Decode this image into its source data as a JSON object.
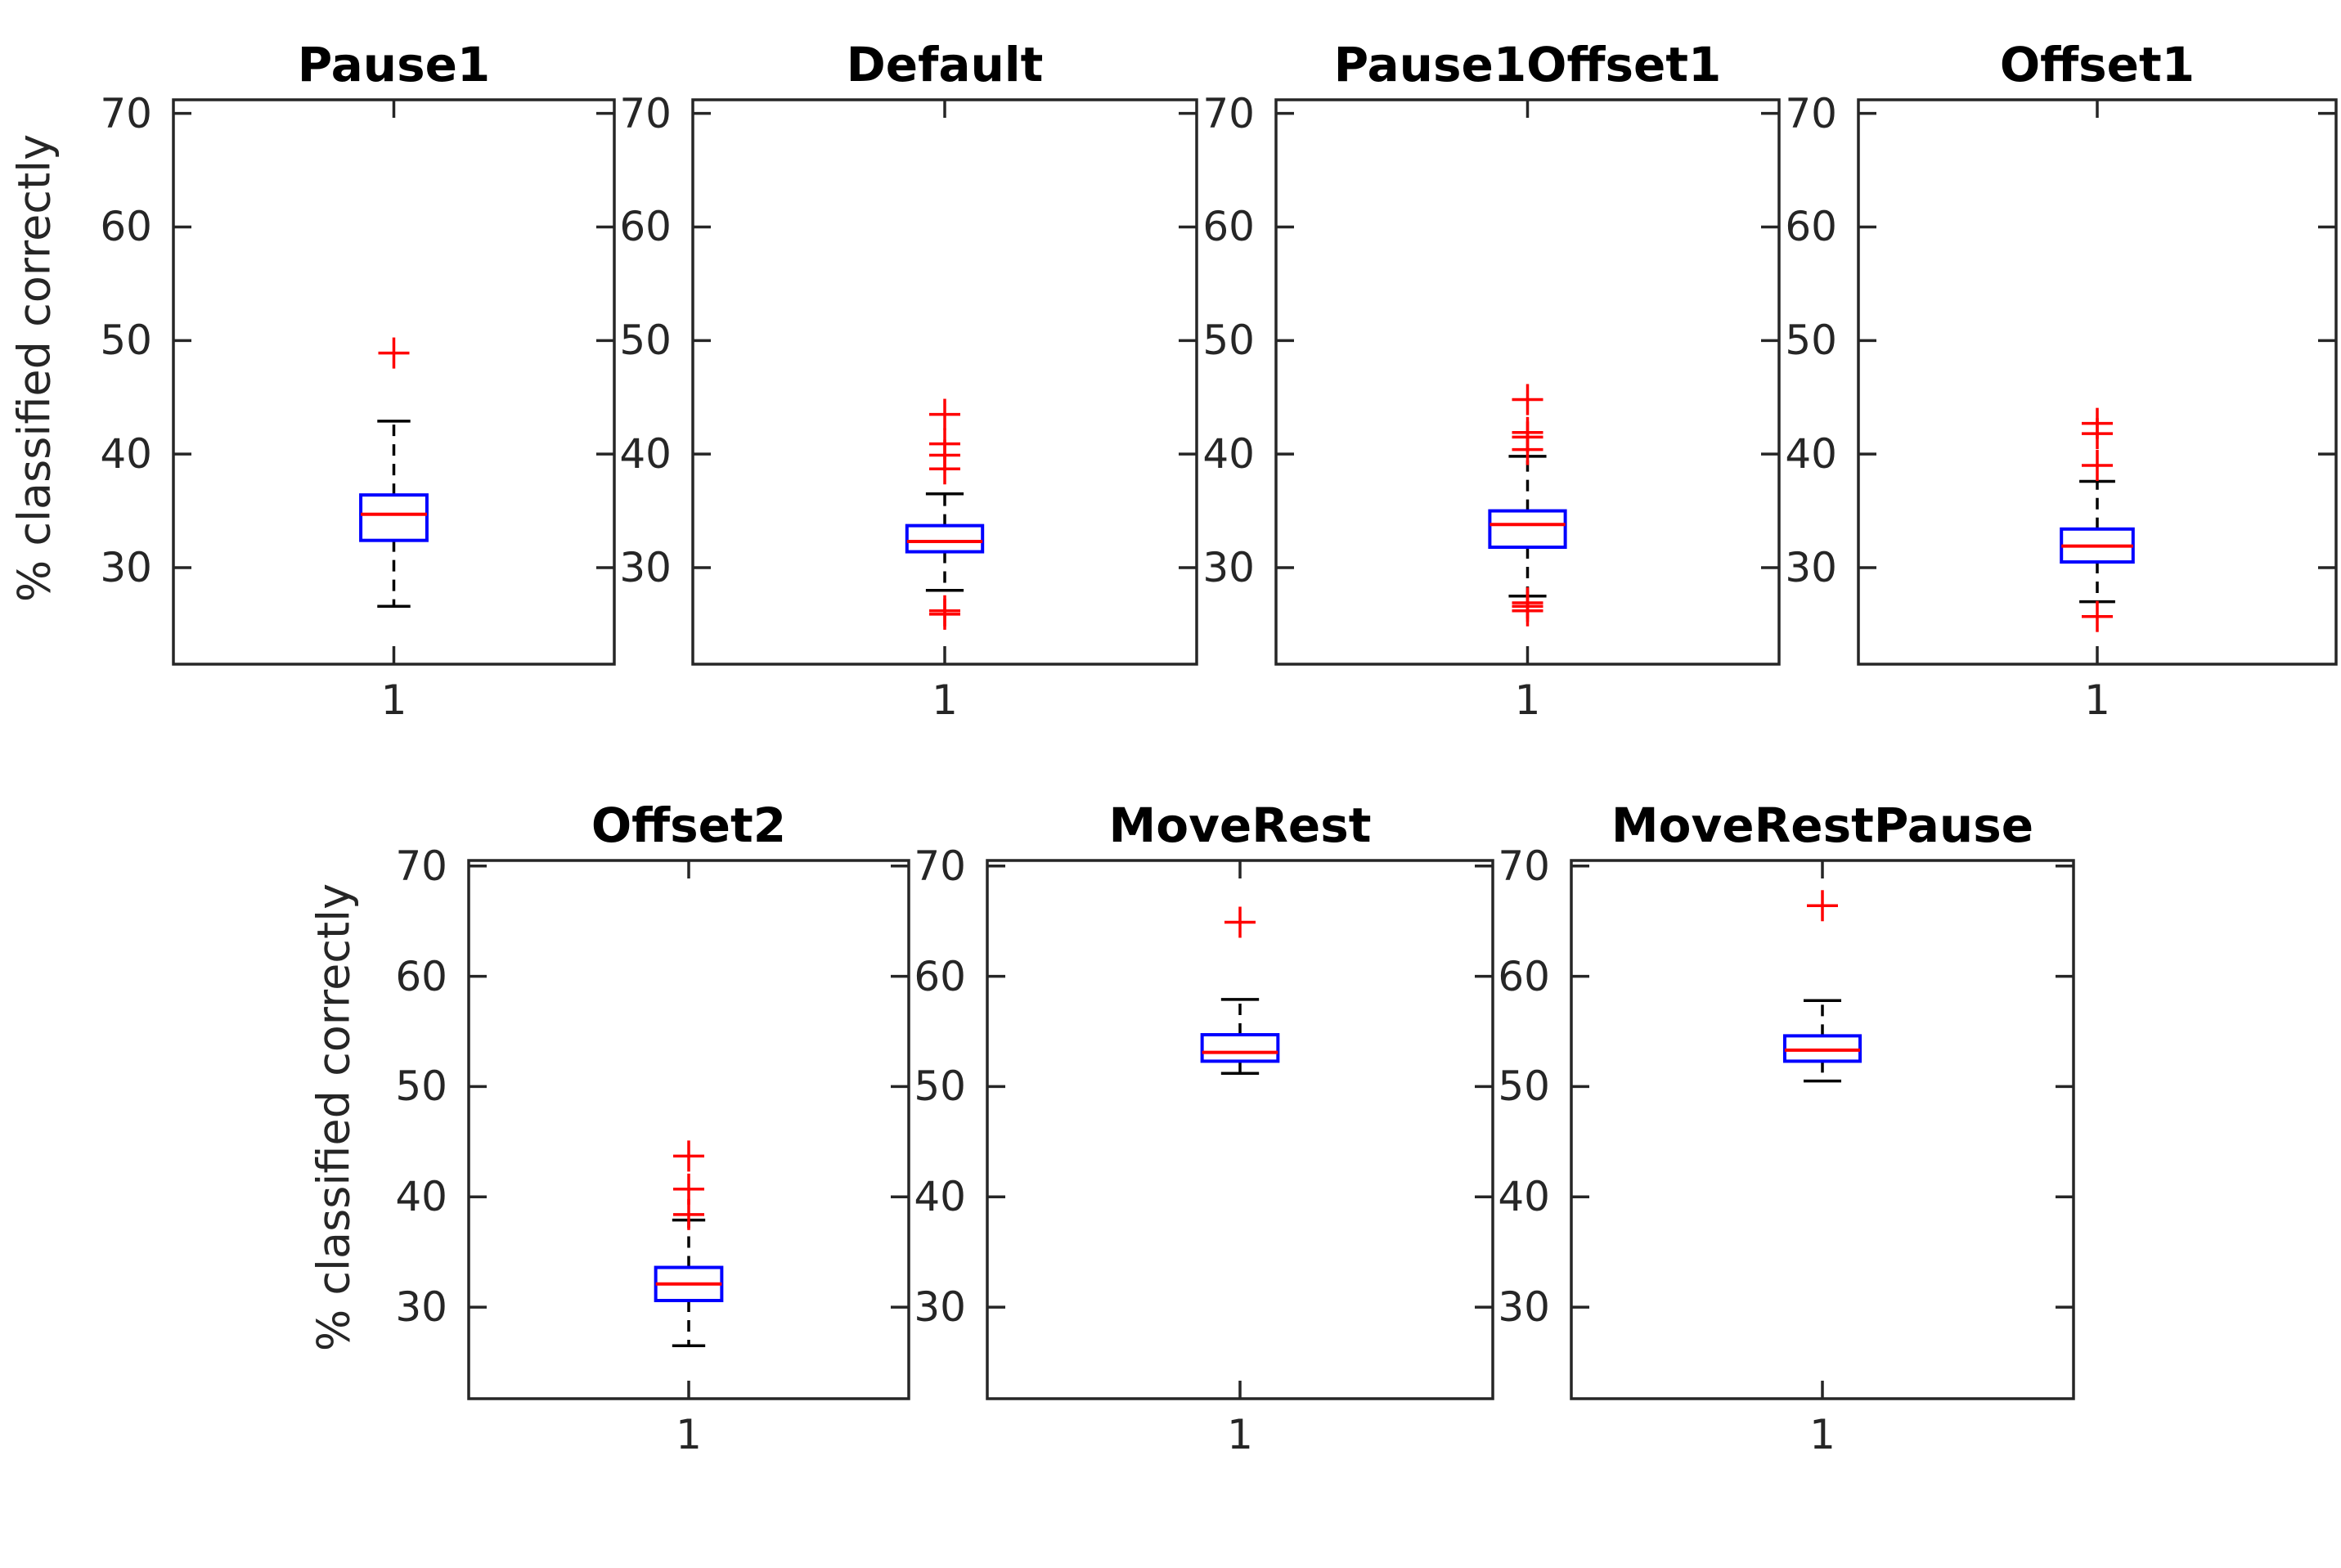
{
  "figure": {
    "ylabel": "% classified correctly",
    "xtick_label": "1",
    "yticks": [
      70,
      60,
      50,
      40,
      30
    ],
    "background": "#ffffff",
    "colors": {
      "box": "#0000ff",
      "median": "#ff0000",
      "whisker": "#000000",
      "cap": "#000000",
      "outlier": "#ff0000",
      "axis": "#262626",
      "tick_label": "#262626",
      "title": "#000000"
    }
  },
  "chart_data": [
    {
      "type": "boxplot",
      "title": "Pause1",
      "x": 1,
      "ylabel": "% classified correctly",
      "ylim": [
        21.5,
        70.5
      ],
      "whisker_low": 26.6,
      "q1": 32.4,
      "median": 34.7,
      "q3": 36.4,
      "whisker_high": 42.9,
      "outliers": [
        48.9
      ]
    },
    {
      "type": "boxplot",
      "title": "Default",
      "x": 1,
      "ylabel": "% classified correctly",
      "ylim": [
        21.5,
        70.5
      ],
      "whisker_low": 28.0,
      "q1": 31.4,
      "median": 32.3,
      "q3": 33.7,
      "whisker_high": 36.5,
      "outliers": [
        43.5,
        40.9,
        39.9,
        38.7,
        26.2,
        25.9
      ]
    },
    {
      "type": "boxplot",
      "title": "Pause1Offset1",
      "x": 1,
      "ylabel": "% classified correctly",
      "ylim": [
        21.5,
        70.5
      ],
      "whisker_low": 27.5,
      "q1": 31.8,
      "median": 33.8,
      "q3": 35.0,
      "whisker_high": 39.8,
      "outliers": [
        44.8,
        41.9,
        41.5,
        40.4,
        26.9,
        26.6,
        26.2
      ]
    },
    {
      "type": "boxplot",
      "title": "Offset1",
      "x": 1,
      "ylabel": "% classified correctly",
      "ylim": [
        21.5,
        70.5
      ],
      "whisker_low": 27.0,
      "q1": 30.5,
      "median": 31.9,
      "q3": 33.4,
      "whisker_high": 37.6,
      "outliers": [
        42.7,
        41.8,
        39.0,
        25.7
      ]
    },
    {
      "type": "boxplot",
      "title": "Offset2",
      "x": 1,
      "ylabel": "% classified correctly",
      "ylim": [
        21.5,
        70.5
      ],
      "whisker_low": 26.5,
      "q1": 30.6,
      "median": 32.1,
      "q3": 33.6,
      "whisker_high": 37.9,
      "outliers": [
        43.7,
        40.7,
        38.4
      ]
    },
    {
      "type": "boxplot",
      "title": "MoveRest",
      "x": 1,
      "ylabel": "% classified correctly",
      "ylim": [
        21.5,
        70.5
      ],
      "whisker_low": 51.2,
      "q1": 52.3,
      "median": 53.1,
      "q3": 54.7,
      "whisker_high": 57.9,
      "outliers": [
        64.9
      ]
    },
    {
      "type": "boxplot",
      "title": "MoveRestPause",
      "x": 1,
      "ylabel": "% classified correctly",
      "ylim": [
        21.5,
        70.5
      ],
      "whisker_low": 50.5,
      "q1": 52.3,
      "median": 53.3,
      "q3": 54.6,
      "whisker_high": 57.8,
      "outliers": [
        66.4
      ]
    }
  ]
}
